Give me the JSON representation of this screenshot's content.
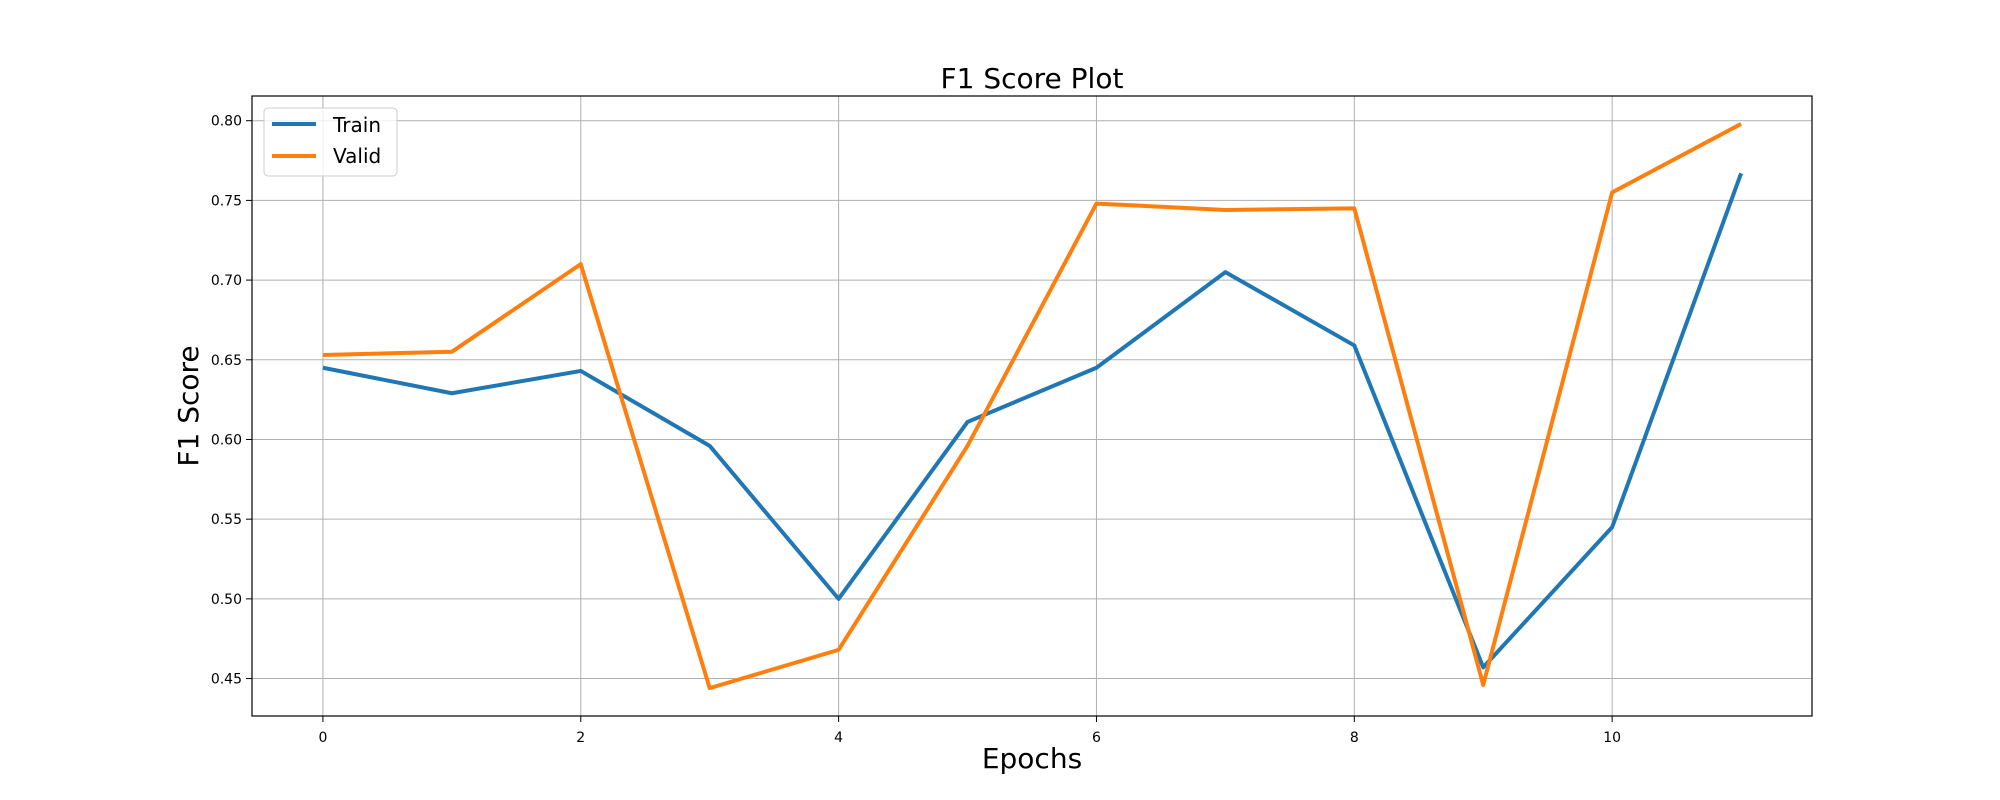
{
  "chart_data": {
    "type": "line",
    "title": "F1 Score Plot",
    "xlabel": "Epochs",
    "ylabel": "F1 Score",
    "x": [
      0,
      1,
      2,
      3,
      4,
      5,
      6,
      7,
      8,
      9,
      10,
      11
    ],
    "series": [
      {
        "name": "Train",
        "color": "#1f77b4",
        "values": [
          0.645,
          0.629,
          0.643,
          0.596,
          0.5,
          0.611,
          0.645,
          0.705,
          0.659,
          0.457,
          0.545,
          0.767
        ]
      },
      {
        "name": "Valid",
        "color": "#ff7f0e",
        "values": [
          0.653,
          0.655,
          0.71,
          0.444,
          0.468,
          0.596,
          0.748,
          0.744,
          0.745,
          0.446,
          0.755,
          0.798
        ]
      }
    ],
    "xlim": [
      -0.55,
      11.55
    ],
    "ylim": [
      0.4265,
      0.8155
    ],
    "xticks": [
      0,
      2,
      4,
      6,
      8,
      10
    ],
    "yticks": [
      0.45,
      0.5,
      0.55,
      0.6,
      0.65,
      0.7,
      0.75,
      0.8
    ],
    "ytick_labels": [
      "0.45",
      "0.50",
      "0.55",
      "0.60",
      "0.65",
      "0.70",
      "0.75",
      "0.80"
    ],
    "grid": true,
    "legend_position": "upper-left"
  }
}
